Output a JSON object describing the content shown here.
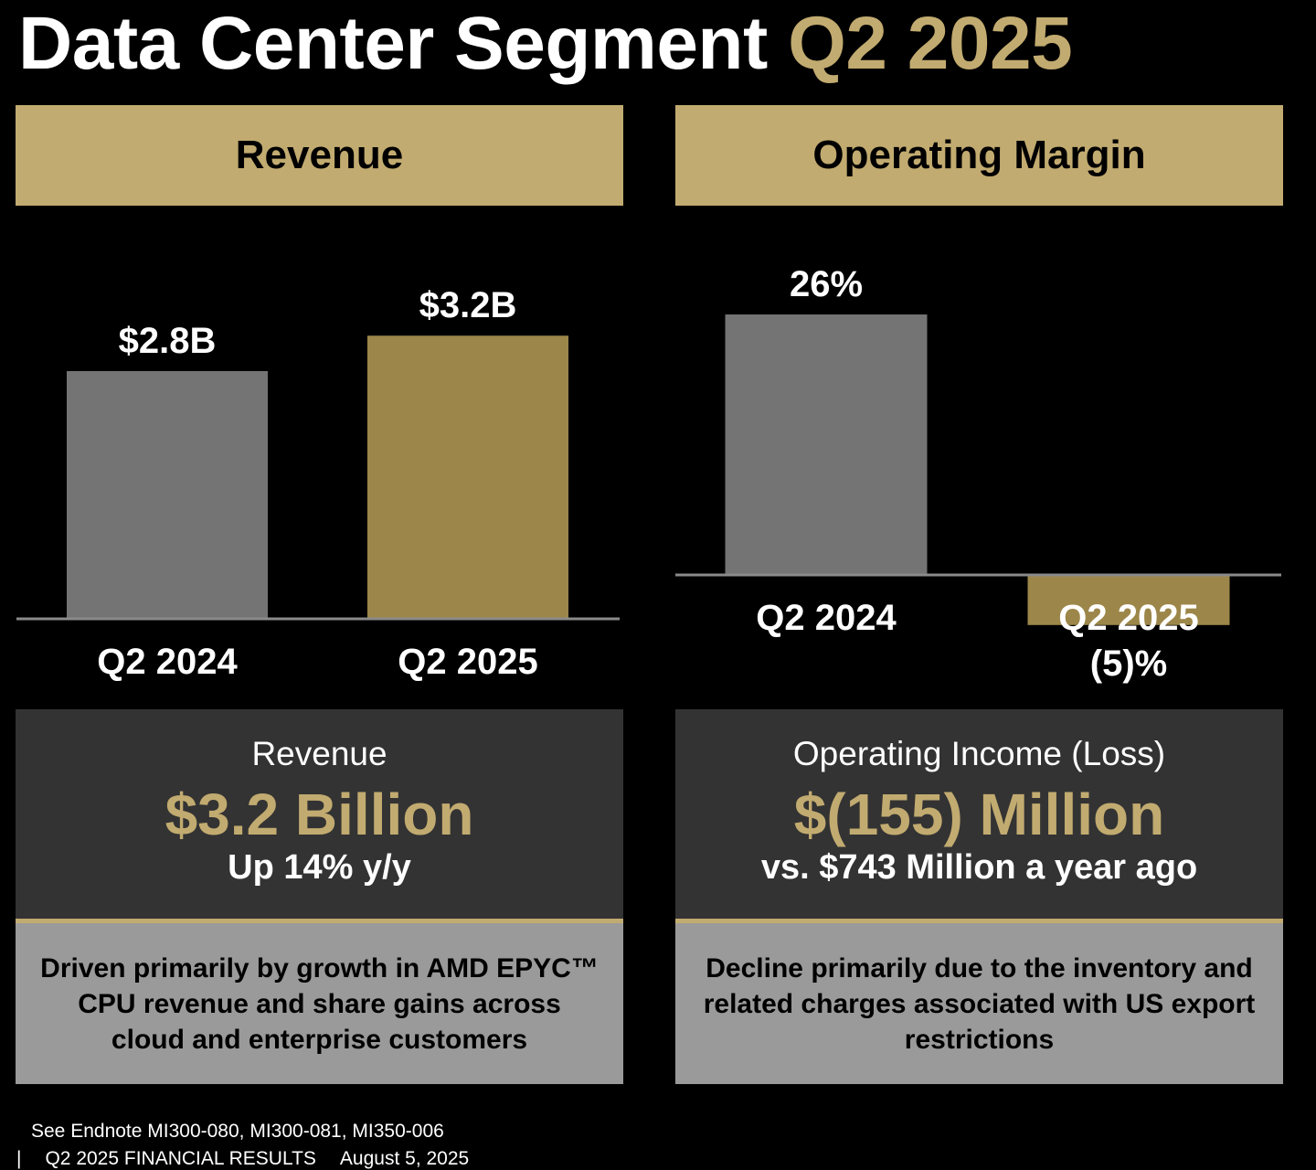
{
  "title": {
    "main": "Data Center Segment",
    "accent": "Q2 2025"
  },
  "colors": {
    "gold": "#c2ab70",
    "bar_gold": "#9c8649",
    "bar_gray": "#747474",
    "dark_box": "#333333",
    "light_box": "#9a9a9a"
  },
  "chart_data": [
    {
      "type": "bar",
      "title": "Revenue",
      "categories": [
        "Q2 2024",
        "Q2 2025"
      ],
      "values": [
        2.8,
        3.2
      ],
      "data_labels": [
        "$2.8B",
        "$3.2B"
      ],
      "ylim": [
        0,
        3.7
      ],
      "xlabel": "",
      "ylabel": ""
    },
    {
      "type": "bar",
      "title": "Operating Margin",
      "categories": [
        "Q2 2024",
        "Q2 2025"
      ],
      "values": [
        26,
        -5
      ],
      "data_labels": [
        "26%",
        "(5)%"
      ],
      "ylim": [
        -6,
        30
      ],
      "xlabel": "",
      "ylabel": ""
    }
  ],
  "revenue_box": {
    "label": "Revenue",
    "value": "$3.2 Billion",
    "sub": "Up 14% y/y",
    "note": "Driven primarily by growth in AMD EPYC™ CPU revenue and share gains across cloud and enterprise customers"
  },
  "income_box": {
    "label": "Operating Income (Loss)",
    "value": "$(155) Million",
    "sub": "vs. $743 Million a year ago",
    "note": "Decline primarily due to the inventory and related charges associated with US export restrictions"
  },
  "footer": {
    "endnote": "See Endnote MI300-080, MI300-081, MI350-006",
    "separator": "|",
    "report": "Q2 2025 FINANCIAL RESULTS",
    "date": "August 5, 2025"
  }
}
